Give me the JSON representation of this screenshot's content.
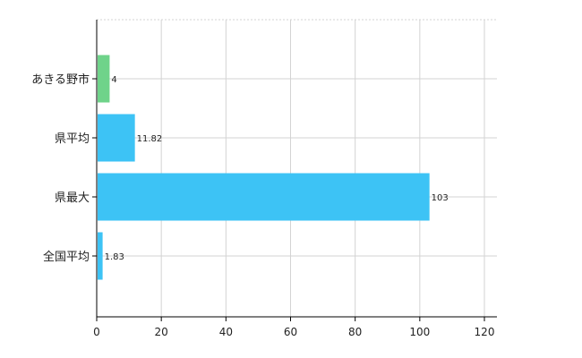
{
  "chart_data": {
    "type": "bar",
    "orientation": "horizontal",
    "categories": [
      "あきる野市",
      "県平均",
      "県最大",
      "全国平均"
    ],
    "values": [
      4,
      11.82,
      103,
      1.83
    ],
    "data_labels": [
      "4",
      "11.82",
      "103",
      "1.83"
    ],
    "bar_colors": [
      "#6fd38a",
      "#3dc3f5",
      "#3dc3f5",
      "#3dc3f5"
    ],
    "xlim": [
      0,
      120
    ],
    "xticks": [
      0,
      20,
      40,
      60,
      80,
      100,
      120
    ],
    "grid": true,
    "legend": "none"
  }
}
